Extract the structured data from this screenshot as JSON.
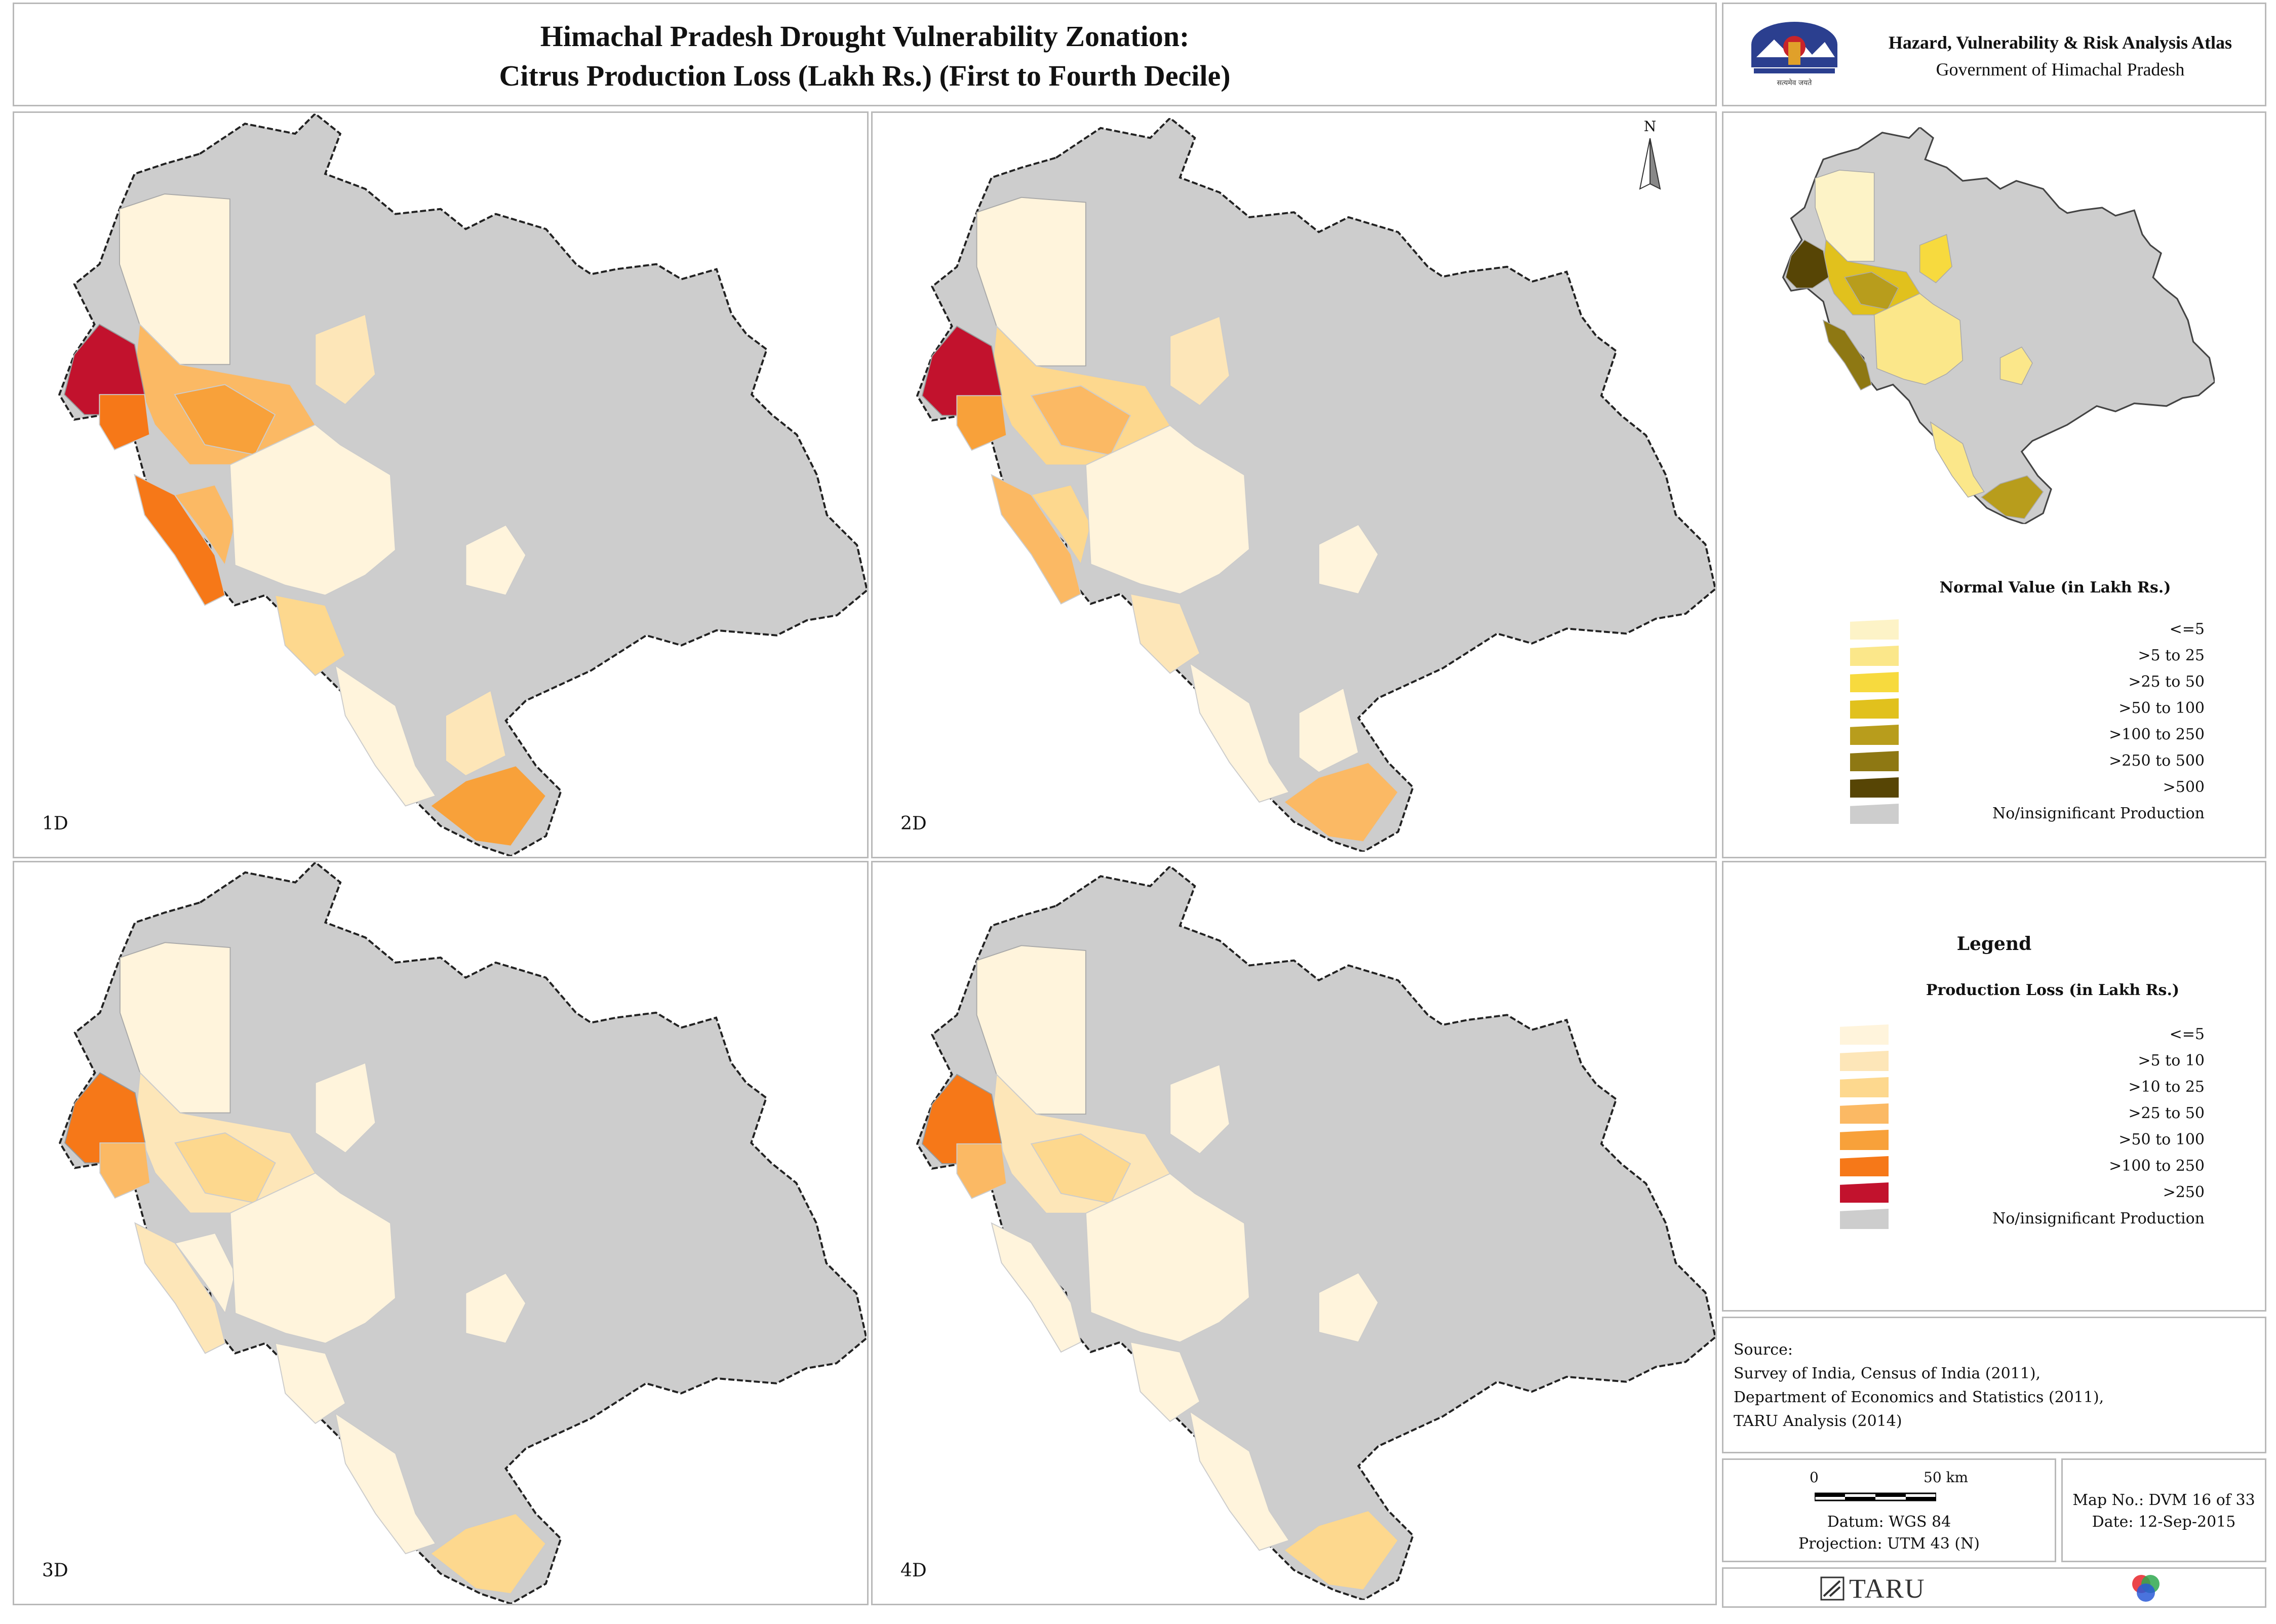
{
  "title": {
    "line1": "Himachal Pradesh Drought Vulnerability Zonation:",
    "line2": "Citrus Production Loss (Lakh Rs.) (First to Fourth Decile)"
  },
  "header_right": {
    "atlas_name": "Hazard, Vulnerability & Risk Analysis Atlas",
    "government": "Government of Himachal Pradesh",
    "emblem_text": "सत्यमेव जयते"
  },
  "north_arrow": {
    "label": "N"
  },
  "panels": [
    {
      "label": "1D"
    },
    {
      "label": "2D"
    },
    {
      "label": "3D"
    },
    {
      "label": "4D"
    }
  ],
  "normal_value_legend": {
    "title": "Normal Value (in Lakh Rs.)",
    "items": [
      {
        "label": "<=5",
        "color": "#fdf3c7"
      },
      {
        "label": ">5 to 25",
        "color": "#fbe78a"
      },
      {
        "label": ">25 to 50",
        "color": "#f7da3e"
      },
      {
        "label": ">50 to 100",
        "color": "#e1c11d"
      },
      {
        "label": ">100 to 250",
        "color": "#b89d1c"
      },
      {
        "label": ">250 to 500",
        "color": "#8e7813"
      },
      {
        "label": ">500",
        "color": "#574505"
      },
      {
        "label": "No/insignificant Production",
        "color": "#cdcdcd"
      }
    ]
  },
  "loss_legend": {
    "heading": "Legend",
    "title": "Production Loss (in Lakh Rs.)",
    "items": [
      {
        "label": "<=5",
        "color": "#fff4dc"
      },
      {
        "label": ">5 to 10",
        "color": "#fde6b8"
      },
      {
        "label": ">10 to 25",
        "color": "#fdd88e"
      },
      {
        "label": ">25 to 50",
        "color": "#fbb964"
      },
      {
        "label": ">50 to 100",
        "color": "#f8a13a"
      },
      {
        "label": ">100 to 250",
        "color": "#f67818"
      },
      {
        "label": ">250",
        "color": "#c2122d"
      },
      {
        "label": "No/insignificant Production",
        "color": "#cdcdcd"
      }
    ]
  },
  "source": {
    "heading": "Source:",
    "lines": [
      "Survey of India, Census of India (2011),",
      "Department of Economics and Statistics (2011),",
      "TARU Analysis (2014)"
    ]
  },
  "scale": {
    "start": "0",
    "end": "50 km",
    "datum": "Datum: WGS 84",
    "projection": "Projection: UTM 43 (N)"
  },
  "map_info": {
    "map_no": "Map No.: DVM 16 of 33",
    "date": "Date: 12-Sep-2015"
  },
  "footer": {
    "logo_text": "TARU"
  },
  "colors": {
    "no_data": "#cdcdcd",
    "border": "#b9b9b9"
  }
}
